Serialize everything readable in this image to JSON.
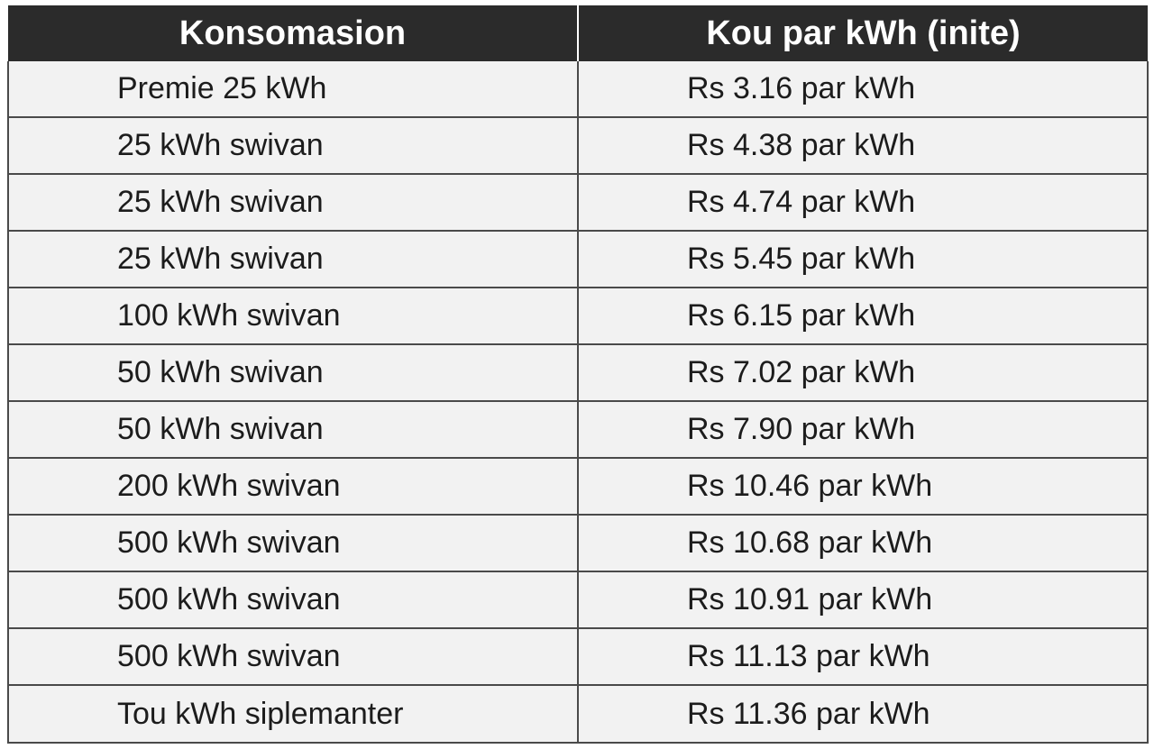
{
  "table": {
    "headers": [
      "Konsomasion",
      "Kou par kWh (inite)"
    ],
    "rows": [
      [
        "Premie 25 kWh",
        "Rs 3.16 par kWh"
      ],
      [
        "25 kWh swivan",
        "Rs 4.38 par kWh"
      ],
      [
        "25 kWh swivan",
        "Rs 4.74 par kWh"
      ],
      [
        "25 kWh swivan",
        "Rs 5.45 par kWh"
      ],
      [
        "100 kWh swivan",
        "Rs 6.15 par kWh"
      ],
      [
        "50 kWh swivan",
        "Rs 7.02 par kWh"
      ],
      [
        "50 kWh swivan",
        "Rs 7.90 par kWh"
      ],
      [
        "200 kWh swivan",
        "Rs 10.46 par kWh"
      ],
      [
        "500 kWh swivan",
        "Rs 10.68 par kWh"
      ],
      [
        "500 kWh swivan",
        "Rs 10.91 par kWh"
      ],
      [
        "500 kWh swivan",
        "Rs 11.13 par kWh"
      ],
      [
        "Tou kWh siplemanter",
        "Rs 11.36 par kWh"
      ]
    ]
  }
}
